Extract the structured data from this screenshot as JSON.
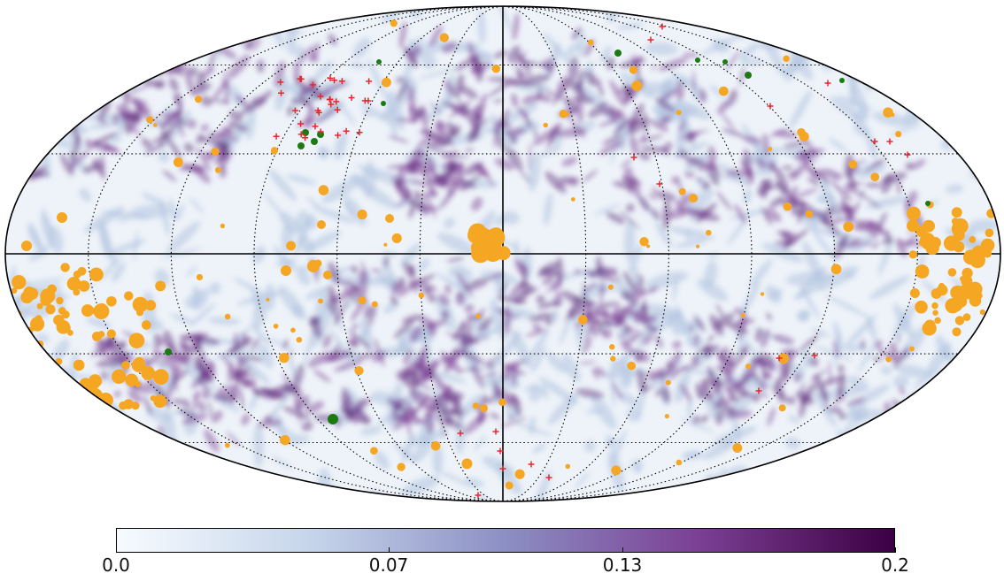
{
  "figure": {
    "projection": "Mollweide",
    "graticule": {
      "style": "dotted",
      "meridians_deg": 30,
      "parallels_deg": 30,
      "color": "#000000"
    },
    "background_gradient_colors": [
      "#f7fbff",
      "#c6d5ea",
      "#8c8fc4",
      "#7b3f93",
      "#3b0044"
    ]
  },
  "colorbar": {
    "min": 0.0,
    "max": 0.2,
    "ticks": [
      {
        "value": 0.0,
        "label": "0.0"
      },
      {
        "value": 0.07,
        "label": "0.07"
      },
      {
        "value": 0.13,
        "label": "0.13"
      },
      {
        "value": 0.2,
        "label": "0.2"
      }
    ]
  },
  "legend_markers": {
    "orange_circle": "#f5a623",
    "green_circle": "#1b7a12",
    "red_cross": "#e8262d"
  }
}
